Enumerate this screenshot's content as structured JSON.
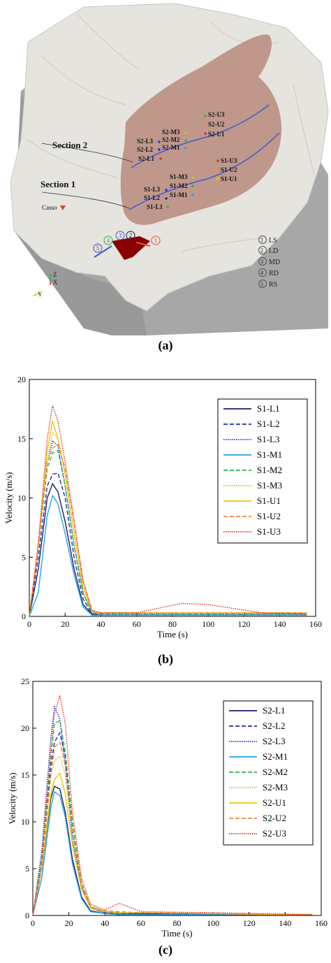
{
  "panel_a": {
    "caption": "(a)",
    "section_labels": [
      "Section 2",
      "Section 1"
    ],
    "casso_label": "Casso",
    "points": [
      "S2-U3",
      "S2-U2",
      "S2-U1",
      "S2-M3",
      "S2-M2",
      "S2-M1",
      "S2-L3",
      "S2-L2",
      "S2-L1",
      "S1-U3",
      "S1-U2",
      "S1-U1",
      "S1-M3",
      "S1-M2",
      "S1-M1",
      "S1-L3",
      "S1-L2",
      "S1-L1"
    ],
    "circle_numbers": [
      "1",
      "2",
      "3",
      "4",
      "5"
    ],
    "legend": [
      {
        "num": "1",
        "label": "LS"
      },
      {
        "num": "2",
        "label": "LD"
      },
      {
        "num": "3",
        "label": "MD"
      },
      {
        "num": "4",
        "label": "RD"
      },
      {
        "num": "5",
        "label": "RS"
      }
    ],
    "axis_labels": {
      "z": "Z",
      "x": "X",
      "y": "Y"
    },
    "colors": {
      "terrain": "#e4e2dc",
      "slide": "#b98a7c",
      "cliff": "#a9a9a9",
      "dam": "#8b0000",
      "line_blue": "#3b5bd6",
      "line_red": "#e0503c"
    }
  },
  "chart_data": [
    {
      "type": "line",
      "caption": "(b)",
      "xlabel": "Time (s)",
      "ylabel": "Velocity (m/s)",
      "xlim": [
        0,
        160
      ],
      "ylim": [
        0,
        20
      ],
      "xticks": [
        "0",
        "20",
        "40",
        "60",
        "80",
        "100",
        "120",
        "140",
        "160"
      ],
      "yticks": [
        "0",
        "5",
        "10",
        "15",
        "20"
      ],
      "legend_position": "top-right",
      "x": [
        0,
        5,
        10,
        13,
        16,
        20,
        25,
        30,
        35,
        40,
        60,
        85,
        100,
        130,
        155
      ],
      "series": [
        {
          "name": "S1-L1",
          "color": "#1c1c6b",
          "dash": "solid",
          "values": [
            0,
            4,
            10,
            11.2,
            10.5,
            8,
            4,
            1,
            0.2,
            0.1,
            0.1,
            0.1,
            0.1,
            0.1,
            0.1
          ]
        },
        {
          "name": "S1-L2",
          "color": "#1f2f9f",
          "dash": "dashed",
          "values": [
            0,
            5,
            11,
            12,
            12.1,
            10,
            5,
            1.5,
            0.2,
            0.1,
            0.1,
            0.1,
            0.1,
            0.1,
            0.1
          ]
        },
        {
          "name": "S1-L3",
          "color": "#2233cc",
          "dash": "dotted",
          "values": [
            0,
            6,
            13,
            14.8,
            14.4,
            11,
            6,
            2,
            0.3,
            0.2,
            0.2,
            0.2,
            0.2,
            0.2,
            0.2
          ]
        },
        {
          "name": "S1-M1",
          "color": "#23a7e8",
          "dash": "solid",
          "values": [
            0,
            2,
            8.5,
            10.2,
            9.5,
            7,
            3.5,
            0.8,
            0.1,
            0.1,
            0.1,
            0.1,
            0.1,
            0.1,
            0.1
          ]
        },
        {
          "name": "S1-M2",
          "color": "#2db24a",
          "dash": "dashed",
          "values": [
            0,
            6,
            12.5,
            13.8,
            14,
            11,
            6,
            2,
            0.3,
            0.2,
            0.2,
            0.2,
            0.2,
            0.2,
            0.2
          ]
        },
        {
          "name": "S1-M3",
          "color": "#b8c832",
          "dash": "dotted",
          "values": [
            0,
            6,
            13,
            15.5,
            15,
            12,
            7,
            2.5,
            0.4,
            0.3,
            0.3,
            0.3,
            0.3,
            0.3,
            0.3
          ]
        },
        {
          "name": "S1-U1",
          "color": "#f0c800",
          "dash": "solid",
          "values": [
            0,
            6,
            14,
            16.5,
            15,
            12,
            7,
            2.5,
            0.4,
            0.3,
            0.3,
            0.3,
            0.3,
            0.3,
            0.3
          ]
        },
        {
          "name": "S1-U2",
          "color": "#f0883c",
          "dash": "dashed",
          "values": [
            0,
            6,
            13,
            14.2,
            14.5,
            12.5,
            8,
            3,
            0.5,
            0.3,
            0.3,
            0.3,
            0.3,
            0.3,
            0.3
          ]
        },
        {
          "name": "S1-U3",
          "color": "#e0302a",
          "dash": "dotted",
          "values": [
            0,
            6,
            15,
            17.8,
            16.5,
            13,
            8,
            3,
            0.5,
            0.3,
            0.3,
            1.1,
            1.0,
            0.3,
            0.2
          ]
        }
      ]
    },
    {
      "type": "line",
      "caption": "(c)",
      "xlabel": "Time (s)",
      "ylabel": "Velocity (m/s)",
      "xlim": [
        0,
        160
      ],
      "ylim": [
        0,
        25
      ],
      "xticks": [
        "0",
        "20",
        "40",
        "60",
        "80",
        "100",
        "120",
        "140",
        "160"
      ],
      "yticks": [
        "0",
        "5",
        "10",
        "15",
        "20",
        "25"
      ],
      "legend_position": "top-right",
      "x": [
        0,
        5,
        10,
        12,
        15,
        18,
        22,
        27,
        32,
        40,
        48,
        60,
        100,
        130,
        155
      ],
      "series": [
        {
          "name": "S2-L1",
          "color": "#1c1c6b",
          "dash": "solid",
          "values": [
            0,
            5,
            12.5,
            13.8,
            13.5,
            11,
            6,
            2,
            0.5,
            0.2,
            0.1,
            0.2,
            0.1,
            0.1,
            0.1
          ]
        },
        {
          "name": "S2-L2",
          "color": "#1f2f9f",
          "dash": "dashed",
          "values": [
            0,
            6,
            16,
            18.5,
            19.5,
            17,
            9,
            3,
            0.8,
            0.3,
            0.2,
            0.2,
            0.2,
            0.1,
            0.1
          ]
        },
        {
          "name": "S2-L3",
          "color": "#2233cc",
          "dash": "dotted",
          "values": [
            0,
            7,
            19,
            22.3,
            21,
            16,
            8,
            3,
            0.8,
            0.3,
            0.2,
            0.2,
            0.2,
            0.1,
            0.1
          ]
        },
        {
          "name": "S2-M1",
          "color": "#23a7e8",
          "dash": "solid",
          "values": [
            0,
            4,
            11.5,
            13.2,
            12.8,
            10.5,
            5.5,
            1.8,
            0.4,
            0.2,
            0.1,
            0.1,
            0.1,
            0.1,
            0.1
          ]
        },
        {
          "name": "S2-M2",
          "color": "#2db24a",
          "dash": "dashed",
          "values": [
            0,
            6,
            17,
            20.5,
            20.8,
            17.5,
            10,
            3.5,
            1,
            0.4,
            0.3,
            0.3,
            0.2,
            0.1,
            0.1
          ]
        },
        {
          "name": "S2-M3",
          "color": "#b8c832",
          "dash": "dotted",
          "values": [
            0,
            6,
            15,
            16.5,
            17,
            15,
            9,
            3.5,
            1,
            0.5,
            0.3,
            0.3,
            0.2,
            0.1,
            0.1
          ]
        },
        {
          "name": "S2-U1",
          "color": "#f0c800",
          "dash": "solid",
          "values": [
            0,
            5,
            13,
            14.5,
            15.2,
            13,
            7.5,
            2.8,
            0.8,
            0.4,
            0.3,
            0.3,
            0.2,
            0.1,
            0.1
          ]
        },
        {
          "name": "S2-U2",
          "color": "#f0883c",
          "dash": "dashed",
          "values": [
            0,
            5,
            15,
            18,
            18.5,
            16,
            9,
            3.2,
            0.9,
            0.5,
            0.4,
            0.3,
            0.2,
            0.1,
            0.1
          ]
        },
        {
          "name": "S2-U3",
          "color": "#e0302a",
          "dash": "dotted",
          "values": [
            0,
            6,
            18,
            21.5,
            23.5,
            20.5,
            11,
            4,
            1.2,
            0.6,
            1.3,
            0.4,
            0.3,
            0.2,
            0.1
          ]
        }
      ]
    }
  ]
}
